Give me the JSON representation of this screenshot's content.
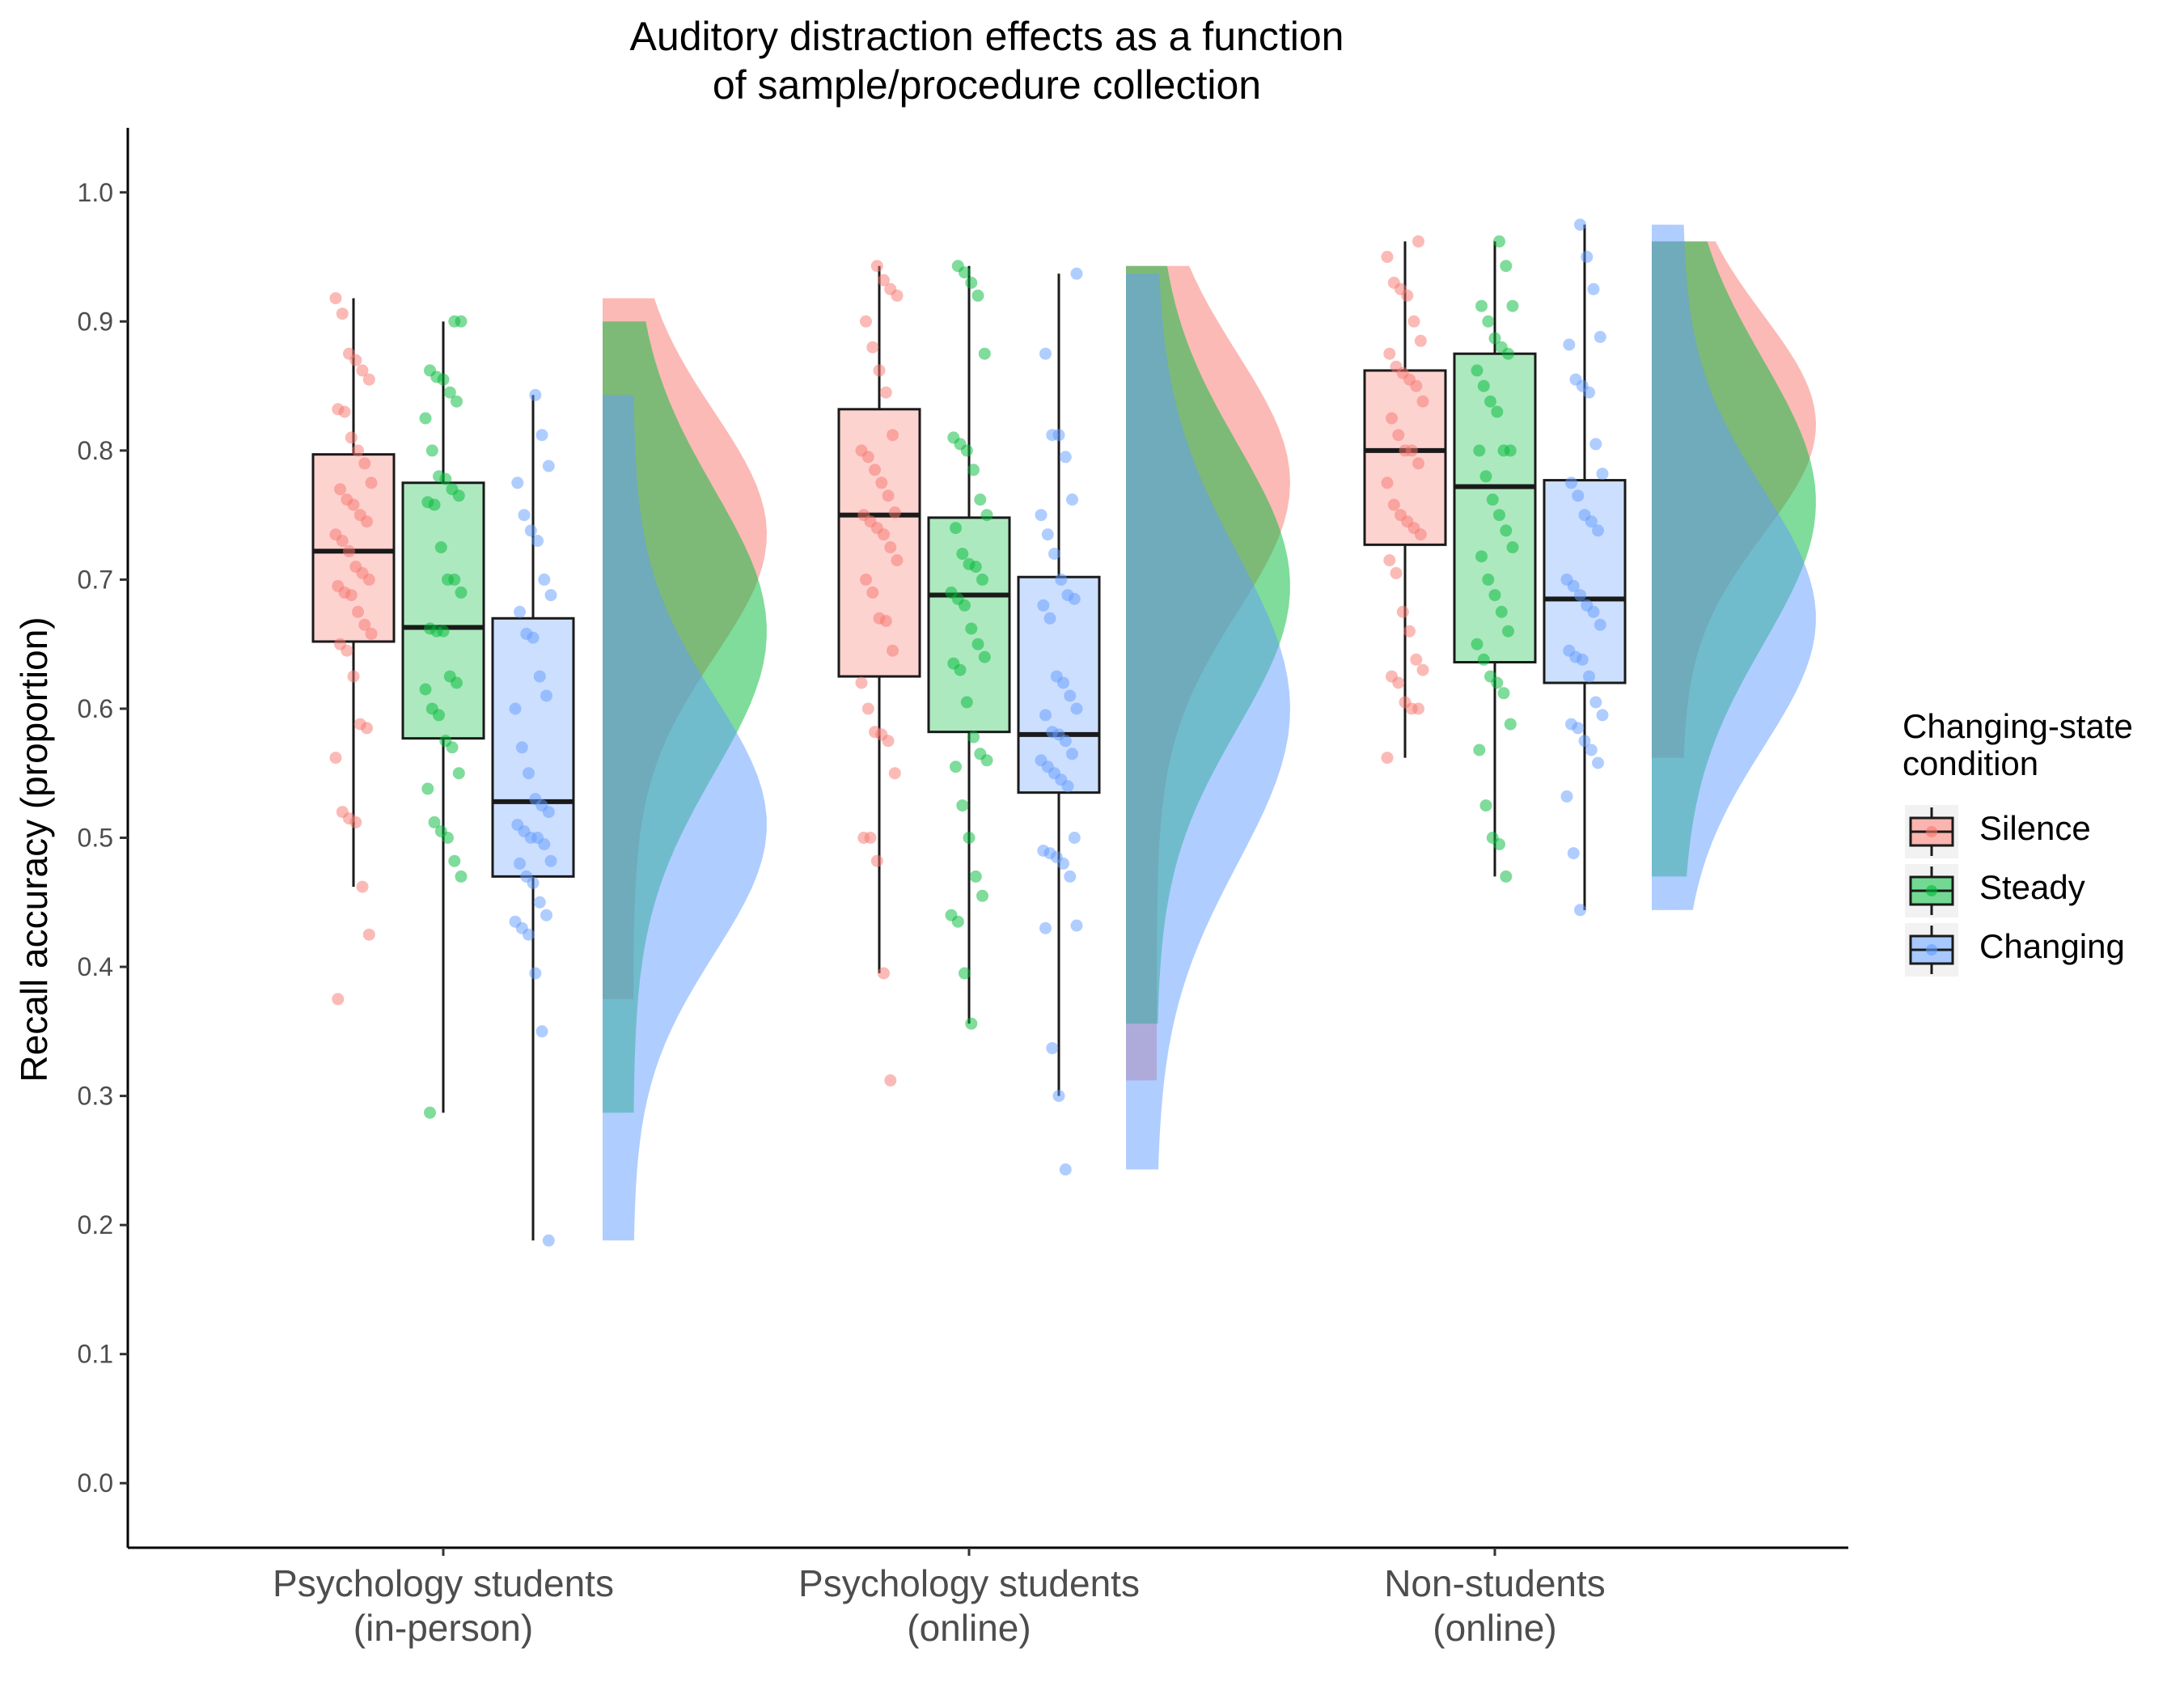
{
  "chart_data": {
    "type": "raincloud",
    "title_lines": [
      "Auditory distraction effects as a function",
      "of sample/procedure collection"
    ],
    "ylabel": "Recall accuracy (proportion)",
    "xlabel": "",
    "ylim": [
      -0.05,
      1.05
    ],
    "yticks": [
      "0.0",
      "0.1",
      "0.2",
      "0.3",
      "0.4",
      "0.5",
      "0.6",
      "0.7",
      "0.8",
      "0.9",
      "1.0"
    ],
    "grid": false,
    "legend": {
      "title_lines": [
        "Changing-state",
        "condition"
      ],
      "placement": "right",
      "entries": [
        "Silence",
        "Steady",
        "Changing"
      ]
    },
    "colors": {
      "Silence": "#F8766D",
      "Steady": "#00BA38",
      "Changing": "#619CFF"
    },
    "groups": [
      {
        "label_lines": [
          "Psychology students",
          "(in-person)"
        ],
        "series": [
          {
            "name": "Silence",
            "min": 0.375,
            "q1": 0.652,
            "median": 0.722,
            "q3": 0.797,
            "max": 0.918,
            "whisker_low": 0.462,
            "density_peak": 0.735,
            "density_sd": 0.095,
            "points": [
              0.918,
              0.906,
              0.875,
              0.87,
              0.862,
              0.855,
              0.832,
              0.83,
              0.81,
              0.8,
              0.79,
              0.775,
              0.77,
              0.762,
              0.758,
              0.75,
              0.745,
              0.735,
              0.73,
              0.722,
              0.71,
              0.705,
              0.7,
              0.695,
              0.69,
              0.688,
              0.675,
              0.665,
              0.658,
              0.65,
              0.645,
              0.625,
              0.588,
              0.585,
              0.562,
              0.52,
              0.515,
              0.512,
              0.462,
              0.425,
              0.375
            ]
          },
          {
            "name": "Steady",
            "min": 0.287,
            "q1": 0.577,
            "median": 0.663,
            "q3": 0.775,
            "max": 0.9,
            "whisker_low": 0.287,
            "density_peak": 0.66,
            "density_sd": 0.11,
            "points": [
              0.9,
              0.9,
              0.862,
              0.857,
              0.855,
              0.845,
              0.838,
              0.825,
              0.8,
              0.78,
              0.778,
              0.77,
              0.765,
              0.76,
              0.758,
              0.725,
              0.7,
              0.7,
              0.69,
              0.662,
              0.66,
              0.66,
              0.625,
              0.62,
              0.615,
              0.6,
              0.595,
              0.575,
              0.57,
              0.55,
              0.538,
              0.512,
              0.505,
              0.5,
              0.482,
              0.47,
              0.287
            ]
          },
          {
            "name": "Changing",
            "min": 0.188,
            "q1": 0.47,
            "median": 0.528,
            "q3": 0.67,
            "max": 0.843,
            "whisker_low": 0.188,
            "density_peak": 0.51,
            "density_sd": 0.1,
            "points": [
              0.843,
              0.812,
              0.788,
              0.775,
              0.75,
              0.738,
              0.73,
              0.7,
              0.688,
              0.675,
              0.658,
              0.655,
              0.625,
              0.61,
              0.6,
              0.57,
              0.55,
              0.53,
              0.525,
              0.52,
              0.51,
              0.505,
              0.5,
              0.5,
              0.495,
              0.482,
              0.48,
              0.47,
              0.465,
              0.45,
              0.44,
              0.435,
              0.43,
              0.425,
              0.395,
              0.35,
              0.188
            ]
          }
        ]
      },
      {
        "label_lines": [
          "Psychology students",
          "(online)"
        ],
        "series": [
          {
            "name": "Silence",
            "min": 0.312,
            "q1": 0.625,
            "median": 0.75,
            "q3": 0.832,
            "max": 0.943,
            "whisker_low": 0.395,
            "density_peak": 0.775,
            "density_sd": 0.1,
            "points": [
              0.943,
              0.932,
              0.925,
              0.92,
              0.9,
              0.88,
              0.862,
              0.845,
              0.812,
              0.8,
              0.795,
              0.785,
              0.775,
              0.765,
              0.752,
              0.75,
              0.745,
              0.74,
              0.735,
              0.725,
              0.715,
              0.7,
              0.69,
              0.67,
              0.668,
              0.645,
              0.62,
              0.6,
              0.582,
              0.58,
              0.575,
              0.55,
              0.5,
              0.5,
              0.482,
              0.395,
              0.312
            ]
          },
          {
            "name": "Steady",
            "min": 0.356,
            "q1": 0.582,
            "median": 0.688,
            "q3": 0.748,
            "max": 0.943,
            "whisker_low": 0.356,
            "density_peak": 0.695,
            "density_sd": 0.11,
            "points": [
              0.943,
              0.938,
              0.93,
              0.92,
              0.875,
              0.81,
              0.805,
              0.8,
              0.785,
              0.762,
              0.75,
              0.74,
              0.72,
              0.712,
              0.71,
              0.7,
              0.69,
              0.685,
              0.68,
              0.662,
              0.65,
              0.64,
              0.635,
              0.63,
              0.605,
              0.578,
              0.565,
              0.56,
              0.555,
              0.525,
              0.5,
              0.47,
              0.455,
              0.44,
              0.435,
              0.395,
              0.356
            ]
          },
          {
            "name": "Changing",
            "min": 0.243,
            "q1": 0.535,
            "median": 0.58,
            "q3": 0.702,
            "max": 0.937,
            "whisker_low": 0.3,
            "density_peak": 0.6,
            "density_sd": 0.12,
            "points": [
              0.937,
              0.875,
              0.812,
              0.812,
              0.795,
              0.762,
              0.75,
              0.735,
              0.72,
              0.7,
              0.688,
              0.685,
              0.68,
              0.67,
              0.625,
              0.62,
              0.61,
              0.6,
              0.595,
              0.582,
              0.58,
              0.575,
              0.565,
              0.56,
              0.555,
              0.55,
              0.545,
              0.54,
              0.5,
              0.49,
              0.488,
              0.485,
              0.48,
              0.47,
              0.432,
              0.43,
              0.337,
              0.3,
              0.243
            ]
          }
        ]
      },
      {
        "label_lines": [
          "Non-students",
          "(online)"
        ],
        "series": [
          {
            "name": "Silence",
            "min": 0.562,
            "q1": 0.727,
            "median": 0.8,
            "q3": 0.862,
            "max": 0.962,
            "whisker_low": 0.562,
            "density_peak": 0.82,
            "density_sd": 0.085,
            "points": [
              0.962,
              0.95,
              0.93,
              0.925,
              0.92,
              0.9,
              0.885,
              0.875,
              0.865,
              0.86,
              0.855,
              0.85,
              0.838,
              0.825,
              0.812,
              0.8,
              0.8,
              0.79,
              0.775,
              0.758,
              0.75,
              0.745,
              0.74,
              0.735,
              0.715,
              0.705,
              0.675,
              0.66,
              0.638,
              0.63,
              0.625,
              0.62,
              0.605,
              0.6,
              0.6,
              0.562
            ]
          },
          {
            "name": "Steady",
            "min": 0.47,
            "q1": 0.636,
            "median": 0.772,
            "q3": 0.875,
            "max": 0.962,
            "whisker_low": 0.47,
            "density_peak": 0.76,
            "density_sd": 0.11,
            "points": [
              0.962,
              0.943,
              0.912,
              0.912,
              0.9,
              0.887,
              0.88,
              0.875,
              0.862,
              0.85,
              0.838,
              0.83,
              0.8,
              0.8,
              0.8,
              0.78,
              0.762,
              0.75,
              0.738,
              0.725,
              0.718,
              0.7,
              0.688,
              0.675,
              0.66,
              0.65,
              0.638,
              0.625,
              0.62,
              0.612,
              0.588,
              0.568,
              0.525,
              0.5,
              0.495,
              0.47
            ]
          },
          {
            "name": "Changing",
            "min": 0.444,
            "q1": 0.62,
            "median": 0.685,
            "q3": 0.777,
            "max": 0.975,
            "whisker_low": 0.444,
            "density_peak": 0.67,
            "density_sd": 0.1,
            "points": [
              0.975,
              0.95,
              0.925,
              0.888,
              0.882,
              0.855,
              0.85,
              0.845,
              0.805,
              0.782,
              0.775,
              0.765,
              0.75,
              0.745,
              0.738,
              0.7,
              0.695,
              0.688,
              0.68,
              0.675,
              0.665,
              0.645,
              0.64,
              0.638,
              0.625,
              0.605,
              0.595,
              0.588,
              0.585,
              0.575,
              0.568,
              0.558,
              0.532,
              0.488,
              0.444
            ]
          }
        ]
      }
    ]
  }
}
